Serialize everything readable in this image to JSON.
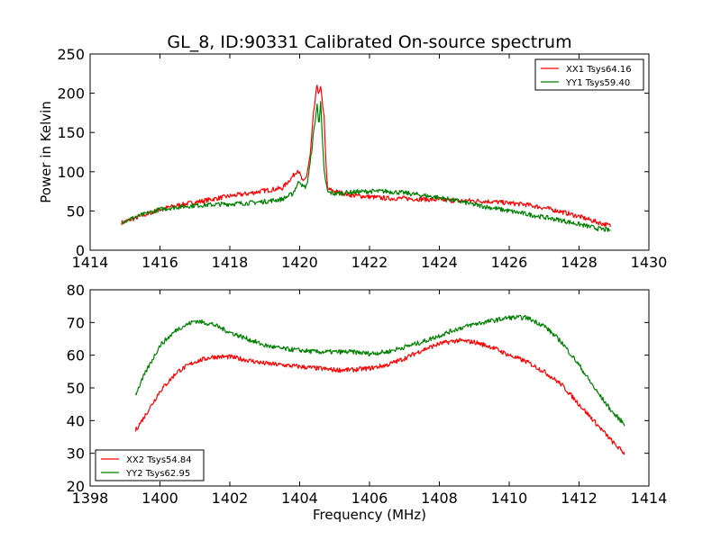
{
  "chart_data": {
    "type": "line",
    "title": "GL_8, ID:90331 Calibrated On-source spectrum",
    "panels": [
      {
        "xlim": [
          1414,
          1430
        ],
        "ylim": [
          0,
          250
        ],
        "xticks": [
          1414,
          1416,
          1418,
          1420,
          1422,
          1424,
          1426,
          1428,
          1430
        ],
        "yticks": [
          0,
          50,
          100,
          150,
          200,
          250
        ],
        "xlabel": "",
        "ylabel": "Power in Kelvin",
        "legend_position": "top-right",
        "series": [
          {
            "name": "XX1 Tsys64.16",
            "color": "#ff0000",
            "x": [
              1414.9,
              1415.5,
              1416,
              1416.5,
              1417,
              1417.5,
              1418,
              1418.5,
              1419,
              1419.5,
              1419.8,
              1419.95,
              1420.1,
              1420.2,
              1420.3,
              1420.4,
              1420.5,
              1420.55,
              1420.6,
              1420.7,
              1420.75,
              1420.8,
              1421,
              1421.5,
              1422,
              1422.5,
              1423,
              1423.5,
              1424,
              1424.5,
              1425,
              1425.5,
              1426,
              1426.5,
              1427,
              1427.5,
              1428,
              1428.5,
              1428.9
            ],
            "values": [
              35,
              44,
              52,
              57,
              61,
              65,
              69,
              72,
              76,
              79,
              94,
              103,
              86,
              95,
              120,
              175,
              211,
              198,
              207,
              170,
              110,
              78,
              75,
              70,
              68,
              66,
              66,
              65,
              64,
              63,
              63,
              62,
              60,
              58,
              54,
              49,
              43,
              36,
              31
            ]
          },
          {
            "name": "YY1 Tsys59.40",
            "color": "#008000",
            "x": [
              1414.9,
              1415.5,
              1416,
              1416.5,
              1417,
              1417.5,
              1418,
              1418.5,
              1419,
              1419.5,
              1419.8,
              1420,
              1420.1,
              1420.2,
              1420.3,
              1420.4,
              1420.5,
              1420.55,
              1420.6,
              1420.65,
              1420.7,
              1420.8,
              1421,
              1421.5,
              1422,
              1422.5,
              1423,
              1423.5,
              1424,
              1424.5,
              1425,
              1425.5,
              1426,
              1426.5,
              1427,
              1427.5,
              1428,
              1428.5,
              1428.9
            ],
            "values": [
              36,
              45,
              52,
              55,
              57,
              58,
              59,
              60,
              62,
              65,
              72,
              89,
              80,
              82,
              110,
              150,
              185,
              160,
              190,
              140,
              100,
              74,
              72,
              74,
              75,
              75,
              73,
              70,
              67,
              63,
              58,
              54,
              50,
              46,
              42,
              38,
              33,
              28,
              25
            ]
          }
        ]
      },
      {
        "xlim": [
          1398,
          1414
        ],
        "ylim": [
          20,
          80
        ],
        "xticks": [
          1398,
          1400,
          1402,
          1404,
          1406,
          1408,
          1410,
          1412,
          1414
        ],
        "yticks": [
          20,
          30,
          40,
          50,
          60,
          70,
          80
        ],
        "xlabel": "Frequency (MHz)",
        "ylabel": "",
        "legend_position": "bottom-left",
        "series": [
          {
            "name": "XX2 Tsys54.84",
            "color": "#ff0000",
            "x": [
              1399.3,
              1399.6,
              1400,
              1400.5,
              1401,
              1401.5,
              1402,
              1402.5,
              1403,
              1403.5,
              1404,
              1404.5,
              1405,
              1405.5,
              1406,
              1406.5,
              1407,
              1407.5,
              1408,
              1408.5,
              1409,
              1409.5,
              1410,
              1410.5,
              1411,
              1411.5,
              1412,
              1412.5,
              1413,
              1413.3
            ],
            "values": [
              37,
              42,
              49,
              55,
              58,
              59.5,
              59.5,
              58.5,
              57.5,
              57,
              56.5,
              56,
              55.5,
              55.5,
              56,
              57,
              59,
              61.5,
              63.5,
              64.5,
              64,
              62.5,
              60,
              58,
              55,
              51,
              45,
              39,
              33,
              30
            ]
          },
          {
            "name": "YY2 Tsys62.95",
            "color": "#008000",
            "x": [
              1399.3,
              1399.6,
              1400,
              1400.5,
              1401,
              1401.5,
              1402,
              1402.5,
              1403,
              1403.5,
              1404,
              1404.5,
              1405,
              1405.5,
              1406,
              1406.5,
              1407,
              1407.5,
              1408,
              1408.5,
              1409,
              1409.5,
              1410,
              1410.5,
              1411,
              1411.5,
              1412,
              1412.5,
              1413,
              1413.3
            ],
            "values": [
              48,
              55,
              63,
              68,
              70.5,
              69.5,
              67,
              65,
              63,
              62,
              61.5,
              61,
              61,
              61,
              60.5,
              61,
              62.5,
              64,
              66,
              68,
              69.5,
              70.5,
              71.5,
              71.5,
              69,
              64,
              57,
              49,
              42,
              39
            ]
          }
        ]
      }
    ]
  }
}
